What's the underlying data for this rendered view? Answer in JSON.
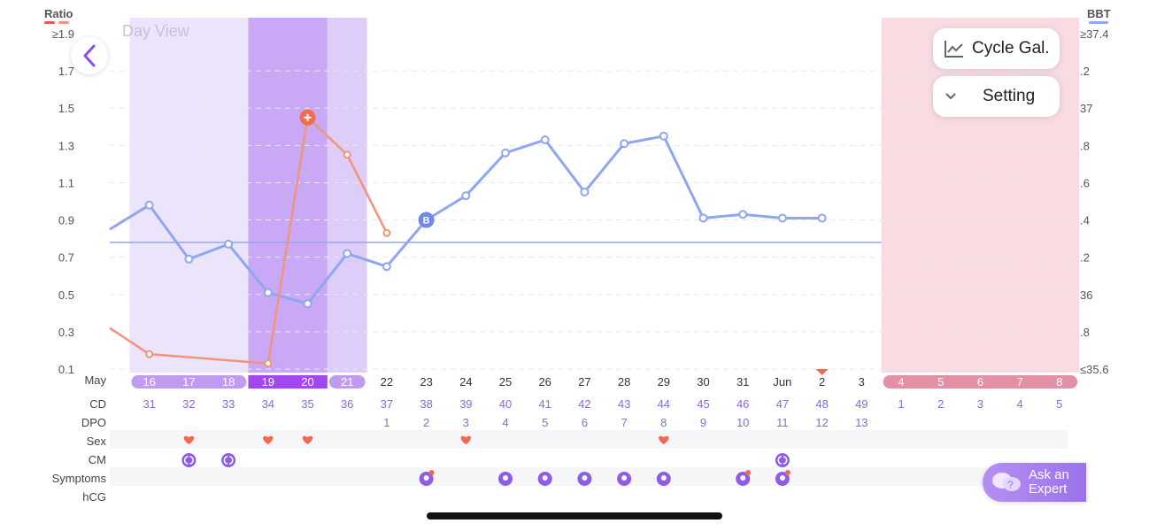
{
  "view_label": "Day View",
  "buttons": {
    "cycle_gallery": "Cycle Gal...",
    "setting": "Setting",
    "ask_expert_line1": "Ask an",
    "ask_expert_line2": "Expert"
  },
  "icons": {
    "back": "chevron-left-icon",
    "cycle_gallery": "line-chart-icon",
    "setting": "chevron-down-icon",
    "ask": "chat-bubbles-icon"
  },
  "colors": {
    "ratio": "#f0957a",
    "bbt": "#8fa6f0",
    "fertile_light": "#ece4fa",
    "fertile_mid": "#ddcdf8",
    "peak": "#c9a8f6",
    "period": "#f9dbe2",
    "period_pill": "#e190a5",
    "fertile_pill_light": "#c09cf0",
    "peak_pill": "#a148ee",
    "purple_text": "#8a6cd1",
    "heart": "#f2694e",
    "symptom": "#8d5de6"
  },
  "chart_data": {
    "type": "line",
    "ratio_axis": {
      "label": "Ratio",
      "ticks": [
        "≥1.9",
        "1.7",
        "1.5",
        "1.3",
        "1.1",
        "0.9",
        "0.7",
        "0.5",
        "0.3",
        "0.1"
      ],
      "range": [
        0.1,
        1.9
      ]
    },
    "bbt_axis": {
      "label": "BBT",
      "ticks": [
        "≥37.4",
        ".2",
        "37",
        ".8",
        ".6",
        ".4",
        ".2",
        "36",
        ".8",
        "≤35.6"
      ],
      "range": [
        35.6,
        37.4
      ]
    },
    "days": [
      {
        "date": "",
        "cd": "",
        "dpo": ""
      },
      {
        "date": "16",
        "cd": "31",
        "dpo": ""
      },
      {
        "date": "17",
        "cd": "32",
        "dpo": ""
      },
      {
        "date": "18",
        "cd": "33",
        "dpo": ""
      },
      {
        "date": "19",
        "cd": "34",
        "dpo": ""
      },
      {
        "date": "20",
        "cd": "35",
        "dpo": ""
      },
      {
        "date": "21",
        "cd": "36",
        "dpo": ""
      },
      {
        "date": "22",
        "cd": "37",
        "dpo": "1"
      },
      {
        "date": "23",
        "cd": "38",
        "dpo": "2"
      },
      {
        "date": "24",
        "cd": "39",
        "dpo": "3"
      },
      {
        "date": "25",
        "cd": "40",
        "dpo": "4"
      },
      {
        "date": "26",
        "cd": "41",
        "dpo": "5"
      },
      {
        "date": "27",
        "cd": "42",
        "dpo": "6"
      },
      {
        "date": "28",
        "cd": "43",
        "dpo": "7"
      },
      {
        "date": "29",
        "cd": "44",
        "dpo": "8"
      },
      {
        "date": "30",
        "cd": "45",
        "dpo": "9"
      },
      {
        "date": "31",
        "cd": "46",
        "dpo": "10"
      },
      {
        "date": "Jun",
        "cd": "47",
        "dpo": "11"
      },
      {
        "date": "2",
        "cd": "48",
        "dpo": "12"
      },
      {
        "date": "3",
        "cd": "49",
        "dpo": "13"
      },
      {
        "date": "4",
        "cd": "1",
        "dpo": ""
      },
      {
        "date": "5",
        "cd": "2",
        "dpo": ""
      },
      {
        "date": "6",
        "cd": "3",
        "dpo": ""
      },
      {
        "date": "7",
        "cd": "4",
        "dpo": ""
      },
      {
        "date": "8",
        "cd": "5",
        "dpo": ""
      }
    ],
    "month_label": "May",
    "row_labels": [
      "CD",
      "DPO",
      "Sex",
      "CM",
      "Symptoms",
      "hCG"
    ],
    "fertile_light_days": [
      1,
      3
    ],
    "peak_days": [
      4,
      5
    ],
    "fertile_mid_days": [
      6,
      6
    ],
    "period_days": [
      20,
      24
    ],
    "series": [
      {
        "name": "Ratio",
        "values": [
          0.32,
          0.18,
          null,
          null,
          0.13,
          1.45,
          1.25,
          0.83
        ]
      },
      {
        "name": "BBT",
        "values": [
          36.35,
          36.48,
          36.19,
          36.27,
          36.01,
          35.95,
          36.22,
          36.15,
          36.4,
          36.53,
          36.76,
          36.83,
          36.55,
          36.81,
          36.85,
          36.41,
          36.43,
          36.41,
          36.41
        ]
      }
    ],
    "coverline": 36.28,
    "ratio_peak_marker_index": 5,
    "bbt_marker": {
      "index": 8,
      "label": "B"
    },
    "today_marker_index": 18,
    "sex_days": [
      2,
      4,
      5,
      9,
      14
    ],
    "cm_days": [
      2,
      3,
      17
    ],
    "symptom_days": [
      8,
      10,
      11,
      12,
      13,
      14,
      16,
      17
    ],
    "symptom_dot_days": [
      8,
      16,
      17
    ]
  }
}
